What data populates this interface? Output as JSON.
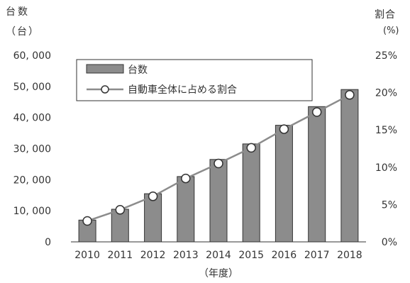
{
  "chart_data": {
    "type": "bar",
    "categories": [
      "2010",
      "2011",
      "2012",
      "2013",
      "2014",
      "2015",
      "2016",
      "2017",
      "2018"
    ],
    "series": [
      {
        "name": "台数",
        "type": "bar",
        "axis": "left",
        "values": [
          7000,
          10500,
          15500,
          21000,
          26500,
          31500,
          37500,
          43500,
          49000
        ],
        "color": "#8c8c8c"
      },
      {
        "name": "自動車全体に占める割合",
        "type": "line",
        "axis": "right",
        "values": [
          2.8,
          4.3,
          6.1,
          8.5,
          10.5,
          12.6,
          15.1,
          17.4,
          19.7
        ],
        "color": "#8c8c8c"
      }
    ],
    "left_axis": {
      "title": "台数",
      "unit": "（台）",
      "ylim": [
        0,
        60000
      ],
      "ticks": [
        0,
        10000,
        20000,
        30000,
        40000,
        50000,
        60000
      ],
      "tick_labels": [
        "0",
        "10, 000",
        "20, 000",
        "30, 000",
        "40, 000",
        "50, 000",
        "60, 000"
      ]
    },
    "right_axis": {
      "title": "割合",
      "unit": "(%)",
      "ylim": [
        0,
        25
      ],
      "ticks": [
        0,
        5,
        10,
        15,
        20,
        25
      ],
      "tick_labels": [
        "0%",
        "5%",
        "10%",
        "15%",
        "20%",
        "25%"
      ]
    },
    "xlabel": "（年度）",
    "grid": false,
    "legend_position": "top-left"
  }
}
